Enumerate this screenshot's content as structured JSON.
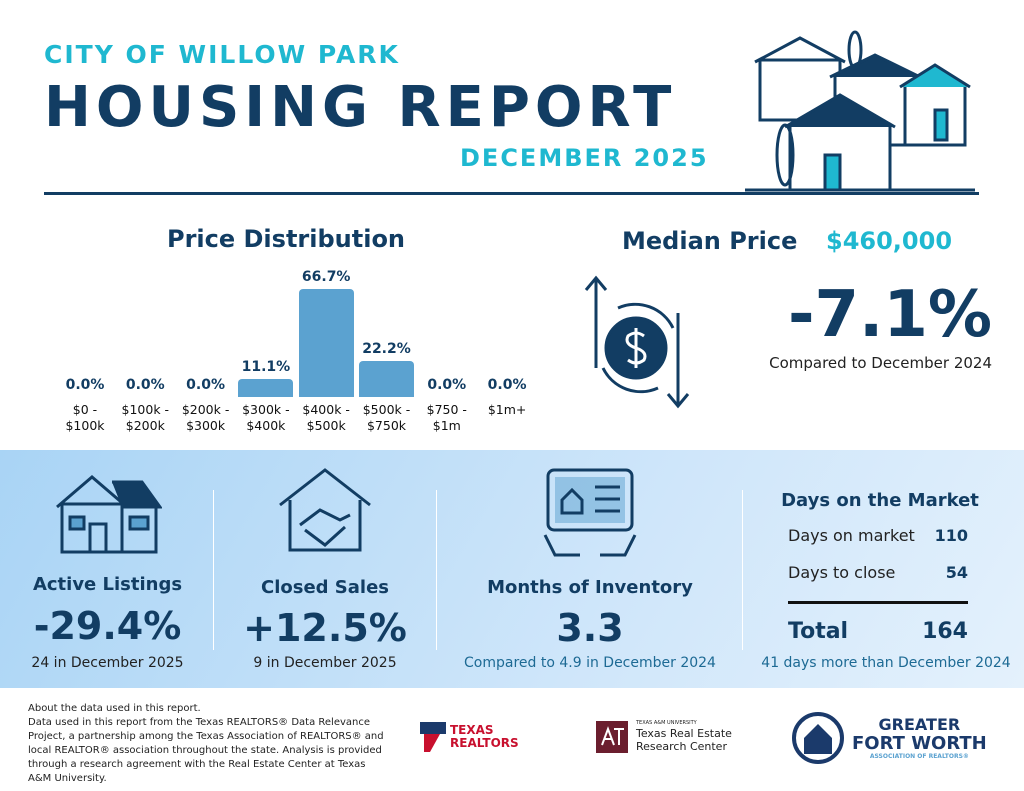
{
  "header": {
    "subtitle": "CITY OF WILLOW PARK",
    "title": "HOUSING REPORT",
    "month": "DECEMBER 2025"
  },
  "price_distribution": {
    "title": "Price Distribution"
  },
  "chart_data": {
    "type": "bar",
    "title": "Price Distribution",
    "categories": [
      "$0 - $100k",
      "$100k - $200k",
      "$200k - $300k",
      "$300k - $400k",
      "$400k - $500k",
      "$500k - $750k",
      "$750 - $1m",
      "$1m+"
    ],
    "values": [
      0.0,
      0.0,
      0.0,
      11.1,
      66.7,
      22.2,
      0.0,
      0.0
    ],
    "labels": [
      "0.0%",
      "0.0%",
      "0.0%",
      "11.1%",
      "66.7%",
      "22.2%",
      "0.0%",
      "0.0%"
    ],
    "cat_lines": [
      [
        "$0 -",
        "$100k"
      ],
      [
        "$100k -",
        "$200k"
      ],
      [
        "$200k -",
        "$300k"
      ],
      [
        "$300k -",
        "$400k"
      ],
      [
        "$400k -",
        "$500k"
      ],
      [
        "$500k -",
        "$750k"
      ],
      [
        "$750 -",
        "$1m"
      ],
      [
        "$1m+",
        ""
      ]
    ],
    "color": "#5ba2d0",
    "grid": false
  },
  "median": {
    "label": "Median Price",
    "value": "$460,000",
    "change": "-7.1%",
    "compare": "Compared to December 2024"
  },
  "stats": {
    "active": {
      "title": "Active Listings",
      "value": "-29.4%",
      "note": "24 in December 2025"
    },
    "closed": {
      "title": "Closed Sales",
      "value": "+12.5%",
      "note": "9 in December 2025"
    },
    "inventory": {
      "title": "Months of Inventory",
      "value": "3.3",
      "note": "Compared to 4.9 in December 2024"
    },
    "dom": {
      "title": "Days on the Market",
      "rows": [
        {
          "label": "Days on market",
          "value": "110"
        },
        {
          "label": "Days to close",
          "value": "54"
        }
      ],
      "total_label": "Total",
      "total_value": "164",
      "note": "41 days more than December 2024"
    }
  },
  "footer": {
    "lines": [
      "About the data used in this report.",
      "Data used in this report from the Texas REALTORS® Data Relevance Project, a partnership among the Texas Association of REALTORS® and local REALTOR® association throughout the state. Analysis is provided through a research agreement with the Real Estate Center at Texas A&M University."
    ],
    "logos": {
      "texas_realtors": [
        "TEXAS",
        "REALTORS"
      ],
      "tamu_small": "TEXAS A&M UNIVERSITY",
      "tamu": [
        "Texas Real Estate",
        "Research Center"
      ],
      "gfw": [
        "GREATER",
        "FORT WORTH",
        "ASSOCIATION OF REALTORS®"
      ]
    }
  },
  "colors": {
    "navy": "#123d63",
    "teal": "#1fb8d0",
    "bar": "#5ba2d0"
  }
}
